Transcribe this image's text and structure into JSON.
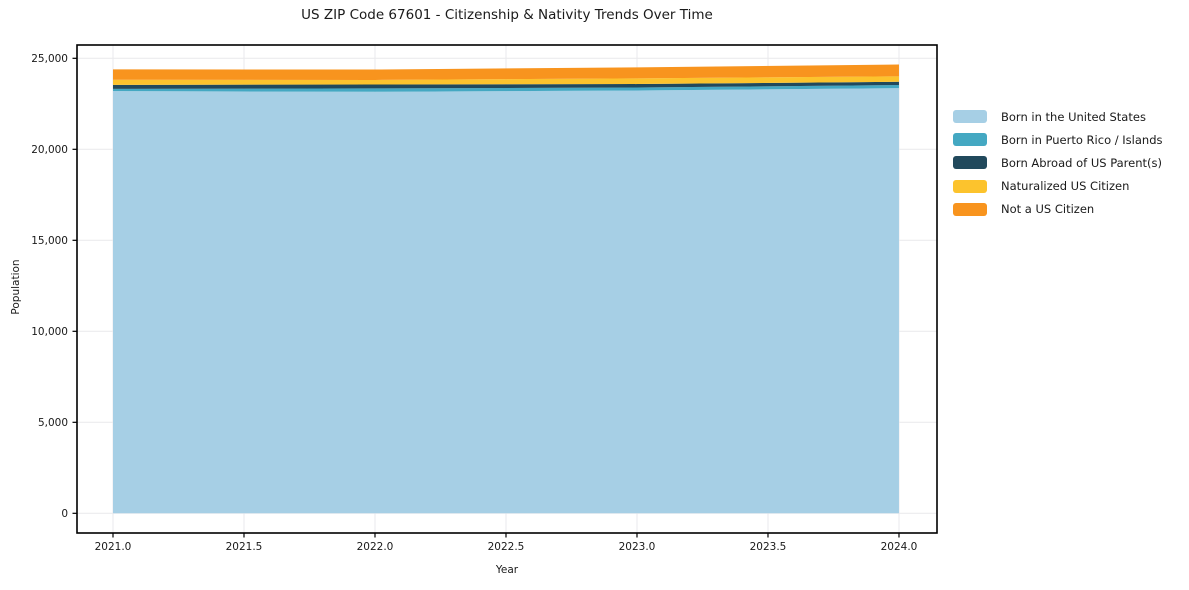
{
  "figure": {
    "title": "US ZIP Code 67601 - Citizenship & Nativity Trends Over Time",
    "xlabel": "Year",
    "ylabel": "Population",
    "background_color": "#ffffff",
    "text_color": "#1a1a1a",
    "spine_color": "#000000"
  },
  "chart_data": {
    "type": "area",
    "stacked": true,
    "title": "US ZIP Code 67601 - Citizenship & Nativity Trends Over Time",
    "xlabel": "Year",
    "ylabel": "Population",
    "x": [
      2021,
      2022,
      2023,
      2024
    ],
    "series": [
      {
        "name": "Born in the United States",
        "color": "#a6cfe5",
        "values": [
          23200,
          23160,
          23230,
          23360
        ]
      },
      {
        "name": "Born in Puerto Rico / Islands",
        "color": "#44a8c2",
        "values": [
          120,
          185,
          165,
          170
        ]
      },
      {
        "name": "Born Abroad of US Parent(s)",
        "color": "#21495c",
        "values": [
          220,
          215,
          190,
          180
        ]
      },
      {
        "name": "Naturalized US Citizen",
        "color": "#fcc32d",
        "values": [
          280,
          250,
          310,
          300
        ]
      },
      {
        "name": "Not a US Citizen",
        "color": "#f8941e",
        "values": [
          570,
          575,
          605,
          650
        ]
      }
    ],
    "x_tick_values": [
      2021,
      2021.5,
      2022,
      2022.5,
      2023,
      2023.5,
      2024
    ],
    "x_tick_labels": [
      "2021.0",
      "2021.5",
      "2022.0",
      "2022.5",
      "2023.0",
      "2023.5",
      "2024.0"
    ],
    "y_tick_values": [
      0,
      5000,
      10000,
      15000,
      20000,
      25000
    ],
    "y_tick_labels": [
      "0",
      "5,000",
      "10,000",
      "15,000",
      "20,000",
      "25,000"
    ],
    "xlim": [
      2020.8626,
      2024.1451
    ],
    "ylim": [
      -1082,
      25731
    ],
    "grid": true,
    "grid_color": "#e9e9ec",
    "legend_position": "right"
  }
}
